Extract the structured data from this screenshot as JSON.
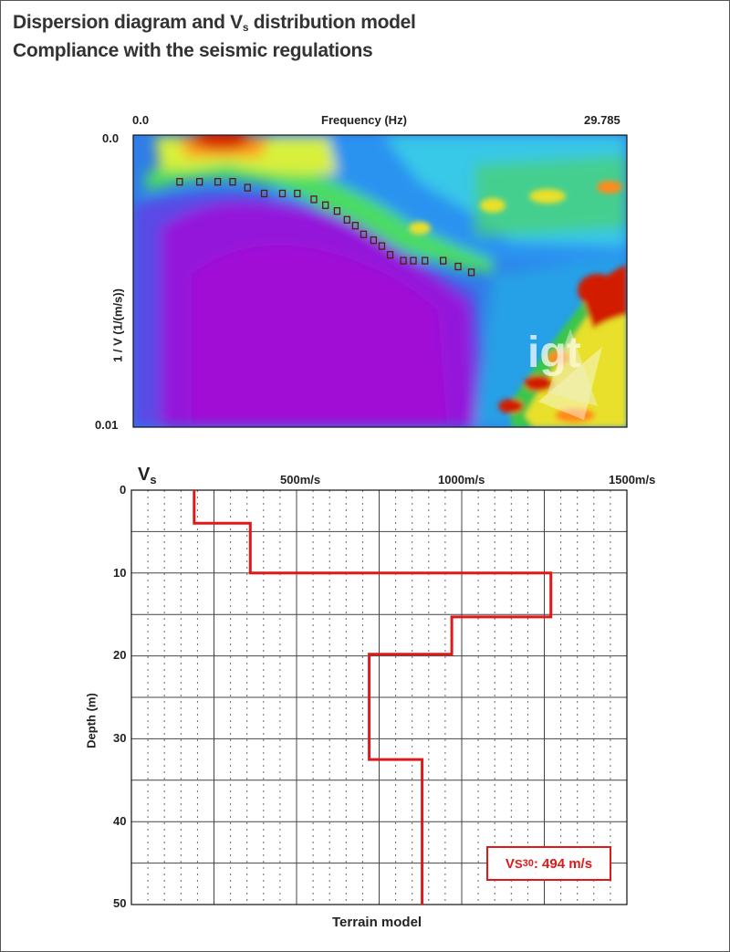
{
  "header": {
    "title_line1_a": "Dispersion diagram and V",
    "title_line1_sub": "s",
    "title_line1_b": " distribution model",
    "title_line2": "Compliance with the seismic regulations"
  },
  "dispersion": {
    "x_axis_label": "Frequency (Hz)",
    "x_min_label": "0.0",
    "x_max_label": "29.785",
    "y_axis_label": "1 / V (1/(m/s))",
    "y_top_label": "0.0",
    "y_bottom_label": "0.01",
    "watermark": "igt"
  },
  "vs_model": {
    "corner_label_main": "V",
    "corner_label_sub": "s",
    "x_tick_labels": [
      "500m/s",
      "1000m/s",
      "1500m/s"
    ],
    "y_tick_labels": [
      "0",
      "10",
      "20",
      "30",
      "40",
      "50"
    ],
    "y_axis_label": "Depth (m)",
    "bottom_label": "Terrain model",
    "vs30_main": "V",
    "vs30_sub": "S",
    "vs30_sup": "30",
    "vs30_value": ": 494 m/s",
    "line_color": "#e01818"
  },
  "chart_data": [
    {
      "type": "heatmap",
      "title": "",
      "xlabel": "Frequency (Hz)",
      "ylabel": "1 / V (1/(m/s))",
      "xlim": [
        0.0,
        29.785
      ],
      "ylim": [
        0.0,
        0.01
      ],
      "picked_points": {
        "x": [
          2.8,
          4.0,
          5.1,
          6.0,
          6.9,
          7.9,
          9.0,
          9.9,
          10.9,
          11.6,
          12.3,
          12.9,
          13.4,
          13.9,
          14.5,
          15.0,
          15.5,
          16.3,
          16.9,
          17.6,
          18.7,
          19.6,
          20.4
        ],
        "y": [
          0.0016,
          0.0016,
          0.0016,
          0.0016,
          0.0018,
          0.002,
          0.002,
          0.002,
          0.0022,
          0.0024,
          0.0026,
          0.0029,
          0.0031,
          0.0034,
          0.0036,
          0.0038,
          0.0041,
          0.0043,
          0.0043,
          0.0043,
          0.0043,
          0.0045,
          0.0047
        ]
      }
    },
    {
      "type": "line",
      "title": "",
      "xlabel": "",
      "ylabel": "Depth (m)",
      "xlim": [
        0,
        1500
      ],
      "ylim": [
        50,
        0
      ],
      "series": [
        {
          "name": "",
          "vs": [
            190,
            190,
            360,
            360,
            1270,
            1270,
            970,
            970,
            720,
            720,
            880,
            880
          ],
          "depth": [
            0,
            4,
            4,
            10,
            10,
            15.3,
            15.3,
            19.8,
            19.8,
            32.5,
            32.5,
            50
          ]
        }
      ]
    }
  ]
}
